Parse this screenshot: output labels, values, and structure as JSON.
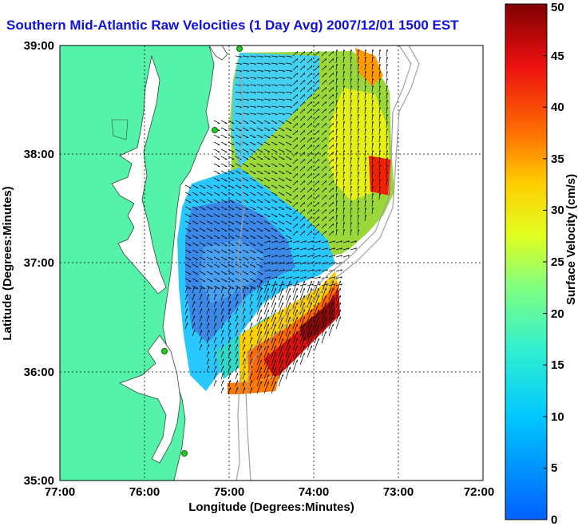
{
  "title": "Southern Mid-Atlantic Raw Velocities (1 Day Avg) 2007/12/01 1500 EST",
  "xlabel": "Longitude (Degrees:Minutes)",
  "ylabel": "Latitude (Degrees:Minutes)",
  "x_ticks": [
    "77:00",
    "76:00",
    "75:00",
    "74:00",
    "73:00",
    "72:00"
  ],
  "y_ticks": [
    "39:00",
    "38:00",
    "37:00",
    "36:00",
    "35:00"
  ],
  "colorbar": {
    "label": "Surface Velocity (cm/s)",
    "ticks": [
      "0",
      "5",
      "10",
      "15",
      "20",
      "25",
      "30",
      "35",
      "40",
      "45",
      "50"
    ]
  },
  "colors": {
    "land": "#55f2aa",
    "title": "#1010e0",
    "station": "#22cc22"
  }
}
